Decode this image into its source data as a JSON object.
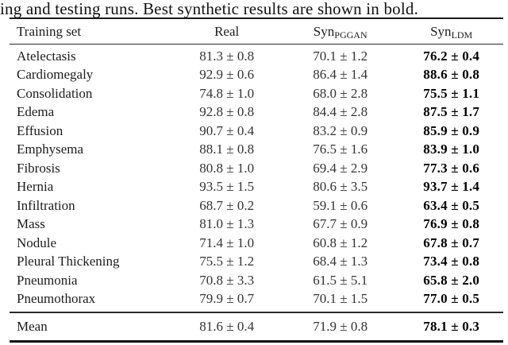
{
  "caption": "ing and testing runs. Best synthetic results are shown in bold.",
  "table": {
    "headers": {
      "training_set": "Training set",
      "real": "Real",
      "syn_pggan_base": "Syn",
      "syn_pggan_sub": "PGGAN",
      "syn_ldm_base": "Syn",
      "syn_ldm_sub": "LDM"
    },
    "rows": [
      {
        "label": "Atelectasis",
        "real": "81.3 ± 0.8",
        "syn_pggan": "70.1 ± 1.2",
        "syn_ldm": "76.2 ± 0.4"
      },
      {
        "label": "Cardiomegaly",
        "real": "92.9 ± 0.6",
        "syn_pggan": "86.4 ± 1.4",
        "syn_ldm": "88.6 ± 0.8"
      },
      {
        "label": "Consolidation",
        "real": "74.8 ± 1.0",
        "syn_pggan": "68.0 ± 2.8",
        "syn_ldm": "75.5 ± 1.1"
      },
      {
        "label": "Edema",
        "real": "92.8 ± 0.8",
        "syn_pggan": "84.4 ± 2.8",
        "syn_ldm": "87.5 ± 1.7"
      },
      {
        "label": "Effusion",
        "real": "90.7 ± 0.4",
        "syn_pggan": "83.2 ± 0.9",
        "syn_ldm": "85.9 ± 0.9"
      },
      {
        "label": "Emphysema",
        "real": "88.1 ± 0.8",
        "syn_pggan": "76.5 ± 1.6",
        "syn_ldm": "83.9 ± 1.0"
      },
      {
        "label": "Fibrosis",
        "real": "80.8 ± 1.0",
        "syn_pggan": "69.4 ± 2.9",
        "syn_ldm": "77.3 ± 0.6"
      },
      {
        "label": "Hernia",
        "real": "93.5 ± 1.5",
        "syn_pggan": "80.6 ± 3.5",
        "syn_ldm": "93.7 ± 1.4"
      },
      {
        "label": "Infiltration",
        "real": "68.7 ± 0.2",
        "syn_pggan": "59.1 ± 0.6",
        "syn_ldm": "63.4 ± 0.5"
      },
      {
        "label": "Mass",
        "real": "81.0 ± 1.3",
        "syn_pggan": "67.7 ± 0.9",
        "syn_ldm": "76.9 ± 0.8"
      },
      {
        "label": "Nodule",
        "real": "71.4 ± 1.0",
        "syn_pggan": "60.8 ± 1.2",
        "syn_ldm": "67.8 ± 0.7"
      },
      {
        "label": "Pleural Thickening",
        "real": "75.5 ± 1.2",
        "syn_pggan": "68.4 ± 1.3",
        "syn_ldm": "73.4 ± 0.8"
      },
      {
        "label": "Pneumonia",
        "real": "70.8 ± 3.3",
        "syn_pggan": "61.5 ± 5.1",
        "syn_ldm": "65.8 ± 2.0"
      },
      {
        "label": "Pneumothorax",
        "real": "79.9 ± 0.7",
        "syn_pggan": "70.1 ± 1.5",
        "syn_ldm": "77.0 ± 0.5"
      }
    ],
    "mean": {
      "label": "Mean",
      "real": "81.6 ± 0.4",
      "syn_pggan": "71.9 ± 0.8",
      "syn_ldm": "78.1 ± 0.3"
    }
  }
}
